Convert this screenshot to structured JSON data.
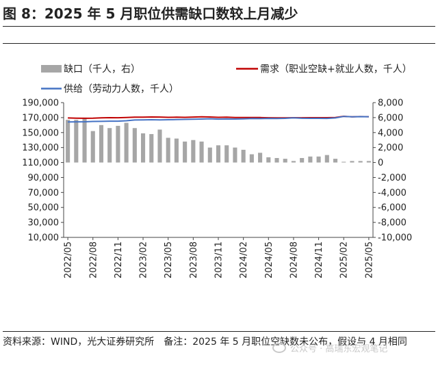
{
  "title": "图 8：2025 年 5 月职位供需缺口数较上月减少",
  "source": "资料来源：WIND，光大证券研究所",
  "note": "备注：2025 年 5 月职位空缺数未公布，假设与 4 月相同",
  "watermark": "公众号 · 高瑞东宏观笔记",
  "chart_data": {
    "type": "bar+line",
    "categories": [
      "2022/05",
      "2022/06",
      "2022/07",
      "2022/08",
      "2022/09",
      "2022/10",
      "2022/11",
      "2022/12",
      "2023/01",
      "2023/02",
      "2023/03",
      "2023/04",
      "2023/05",
      "2023/06",
      "2023/07",
      "2023/08",
      "2023/09",
      "2023/10",
      "2023/11",
      "2023/12",
      "2024/01",
      "2024/02",
      "2024/03",
      "2024/04",
      "2024/05",
      "2024/06",
      "2024/07",
      "2024/08",
      "2024/09",
      "2024/10",
      "2024/11",
      "2024/12",
      "2025/01",
      "2025/02",
      "2025/03",
      "2025/04",
      "2025/05"
    ],
    "tick_labels": [
      "2022/05",
      "2022/08",
      "2022/11",
      "2023/02",
      "2023/05",
      "2023/08",
      "2023/11",
      "2024/02",
      "2024/05",
      "2024/08",
      "2024/11",
      "2025/02",
      "2025/05"
    ],
    "left_axis": {
      "ylim": [
        10000,
        190000
      ],
      "ticks": [
        "10,000",
        "30,000",
        "50,000",
        "70,000",
        "90,000",
        "110,000",
        "130,000",
        "150,000",
        "170,000",
        "190,000"
      ]
    },
    "right_axis": {
      "ylim": [
        -10000,
        8000
      ],
      "ticks": [
        "-10,000",
        "-8,000",
        "-6,000",
        "-4,000",
        "-2,000",
        "0",
        "2,000",
        "4,000",
        "6,000",
        "8,000"
      ]
    },
    "series": [
      {
        "name": "缺口（千人，右）",
        "type": "bar",
        "axis": "right",
        "color": "#a6a6a6",
        "values": [
          5700,
          5700,
          6000,
          4200,
          5000,
          4600,
          4900,
          5300,
          4600,
          3900,
          3800,
          4400,
          3300,
          3200,
          2800,
          3000,
          2800,
          2000,
          2300,
          2300,
          2000,
          1700,
          1100,
          1300,
          700,
          600,
          500,
          200,
          600,
          800,
          800,
          1000,
          500,
          100,
          200,
          200,
          200
        ]
      },
      {
        "name": "需求（职业空缺+就业人数，千人）",
        "type": "line",
        "axis": "left",
        "color": "#c00000",
        "values": [
          169500,
          169300,
          169100,
          169300,
          169700,
          169900,
          169800,
          170200,
          170500,
          170600,
          170800,
          170700,
          170400,
          170500,
          170400,
          170700,
          171000,
          170800,
          170400,
          170600,
          170200,
          170200,
          170100,
          170100,
          169800,
          169600,
          169700,
          169900,
          169800,
          169900,
          169900,
          169900,
          170100,
          171700,
          171000,
          171400,
          171200
        ]
      },
      {
        "name": "供给（劳动力人数，千人）",
        "type": "line",
        "axis": "left",
        "color": "#4472c4",
        "values": [
          164200,
          164300,
          164400,
          164900,
          165000,
          165200,
          165200,
          165800,
          166800,
          167000,
          167200,
          166900,
          167200,
          167300,
          167600,
          167900,
          168100,
          168400,
          168000,
          168200,
          168100,
          168300,
          168800,
          168600,
          168900,
          168800,
          169000,
          169600,
          169100,
          169000,
          169000,
          168900,
          169500,
          171500,
          171100,
          171300,
          171200
        ]
      }
    ]
  }
}
